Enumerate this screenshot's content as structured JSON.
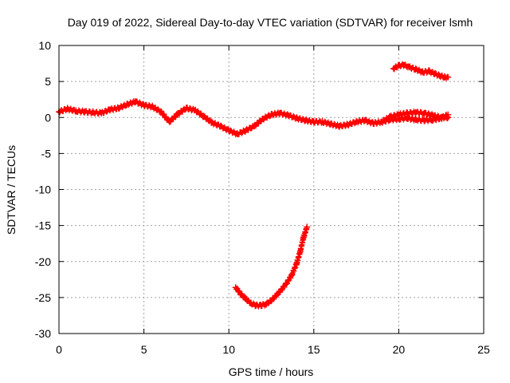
{
  "chart_data": {
    "type": "scatter",
    "title": "Day 019 of 2022, Sidereal Day-to-day VTEC variation (SDTVAR) for receiver lsmh",
    "xlabel": "GPS time / hours",
    "ylabel": "SDTVAR / TECUs",
    "xlim": [
      0,
      25
    ],
    "ylim": [
      -30,
      10
    ],
    "xticks": [
      0,
      5,
      10,
      15,
      20,
      25
    ],
    "yticks": [
      10,
      5,
      0,
      -5,
      -10,
      -15,
      -20,
      -25,
      -30
    ],
    "grid": true,
    "legend": "none",
    "marker": "plus",
    "series": [
      {
        "name": "track-main",
        "color": "#ff0000",
        "points": [
          [
            0,
            0.8
          ],
          [
            0.5,
            1.2
          ],
          [
            1,
            0.9
          ],
          [
            1.5,
            0.8
          ],
          [
            2,
            0.7
          ],
          [
            2.5,
            0.6
          ],
          [
            3,
            1.1
          ],
          [
            3.5,
            1.3
          ],
          [
            4,
            1.8
          ],
          [
            4.5,
            2.2
          ],
          [
            5,
            1.7
          ],
          [
            5.5,
            1.5
          ],
          [
            6,
            0.8
          ],
          [
            6.5,
            -0.6
          ],
          [
            7,
            0.5
          ],
          [
            7.5,
            1.3
          ],
          [
            8,
            1.0
          ],
          [
            8.5,
            0.2
          ],
          [
            9,
            -0.7
          ],
          [
            9.5,
            -1.2
          ],
          [
            10,
            -1.8
          ],
          [
            10.5,
            -2.3
          ],
          [
            11,
            -1.8
          ],
          [
            11.5,
            -1.2
          ],
          [
            12,
            -0.2
          ],
          [
            12.5,
            0.4
          ],
          [
            13,
            0.6
          ],
          [
            13.5,
            0.3
          ],
          [
            14,
            -0.1
          ],
          [
            14.5,
            -0.4
          ],
          [
            15,
            -0.6
          ],
          [
            15.5,
            -0.6
          ],
          [
            16,
            -0.9
          ],
          [
            16.5,
            -1.2
          ],
          [
            17,
            -1.0
          ],
          [
            17.5,
            -0.6
          ],
          [
            18,
            -0.4
          ],
          [
            18.5,
            -0.8
          ],
          [
            19,
            -0.6
          ],
          [
            19.5,
            0.1
          ],
          [
            20,
            0.4
          ],
          [
            20.5,
            0.6
          ],
          [
            21,
            0.7
          ],
          [
            21.5,
            0.6
          ],
          [
            22,
            0.3
          ],
          [
            22.5,
            0.0
          ],
          [
            22.9,
            0.0
          ]
        ]
      },
      {
        "name": "track-lower-branch",
        "color": "#ff0000",
        "points": [
          [
            19.0,
            -0.6
          ],
          [
            19.5,
            -0.3
          ],
          [
            20,
            -0.2
          ],
          [
            20.5,
            -0.1
          ],
          [
            21,
            -0.3
          ],
          [
            21.5,
            -0.4
          ],
          [
            22,
            -0.3
          ],
          [
            22.5,
            -0.1
          ],
          [
            22.9,
            0.4
          ]
        ]
      },
      {
        "name": "track-drop-arc",
        "color": "#ff0000",
        "points": [
          [
            10.4,
            -23.6
          ],
          [
            10.7,
            -24.5
          ],
          [
            11,
            -25.2
          ],
          [
            11.3,
            -25.8
          ],
          [
            11.6,
            -26.1
          ],
          [
            11.9,
            -26.1
          ],
          [
            12.2,
            -25.9
          ],
          [
            12.5,
            -25.4
          ],
          [
            12.8,
            -24.7
          ],
          [
            13.1,
            -23.9
          ],
          [
            13.4,
            -23.0
          ],
          [
            13.7,
            -21.9
          ],
          [
            14.0,
            -20.2
          ],
          [
            14.2,
            -18.6
          ],
          [
            14.4,
            -16.6
          ],
          [
            14.6,
            -15.2
          ]
        ]
      },
      {
        "name": "track-upper",
        "color": "#ff0000",
        "points": [
          [
            19.7,
            6.8
          ],
          [
            20,
            7.2
          ],
          [
            20.3,
            7.3
          ],
          [
            20.6,
            7.0
          ],
          [
            21,
            6.7
          ],
          [
            21.4,
            6.3
          ],
          [
            21.8,
            6.4
          ],
          [
            22.1,
            6.1
          ],
          [
            22.4,
            5.8
          ],
          [
            22.7,
            5.6
          ],
          [
            22.9,
            5.6
          ]
        ]
      }
    ]
  }
}
